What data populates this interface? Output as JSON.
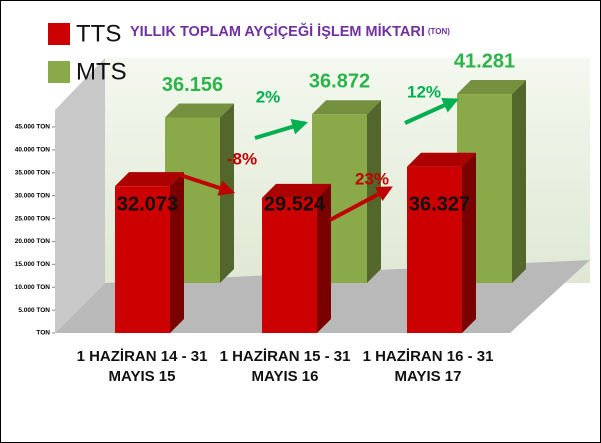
{
  "chart_data": {
    "type": "bar3d",
    "title": "YILLIK TOPLAM AYÇİÇEĞİ İŞLEM MİKTARI",
    "title_unit": "(TON)",
    "categories": [
      "1 HAZİRAN 14 - 31 MAYIS 15",
      "1 HAZİRAN 15 - 31 MAYIS 16",
      "1 HAZİRAN 16 - 31 MAYIS 17"
    ],
    "series": [
      {
        "name": "TTS",
        "color": "#cc0000",
        "values": [
          32073,
          29524,
          36327
        ],
        "value_labels": [
          "32.073",
          "29.524",
          "36.327"
        ]
      },
      {
        "name": "MTS",
        "color": "#8aaa4a",
        "values": [
          36156,
          36872,
          41281
        ],
        "value_labels": [
          "36.156",
          "36.872",
          "41.281"
        ]
      }
    ],
    "ylim": [
      0,
      45000
    ],
    "yticks": [
      {
        "value": 0,
        "label": "TON"
      },
      {
        "value": 5000,
        "label": "5.000 TON"
      },
      {
        "value": 10000,
        "label": "10.000 TON"
      },
      {
        "value": 15000,
        "label": "15.000 TON"
      },
      {
        "value": 20000,
        "label": "20.000 TON"
      },
      {
        "value": 25000,
        "label": "25.000 TON"
      },
      {
        "value": 30000,
        "label": "30.000 TON"
      },
      {
        "value": 35000,
        "label": "35.000 TON"
      },
      {
        "value": 40000,
        "label": "40.000 TON"
      },
      {
        "value": 45000,
        "label": "45.000 TON"
      }
    ],
    "annotations": [
      {
        "text": "-8%",
        "color": "#c00000"
      },
      {
        "text": "2%",
        "color": "#00b050"
      },
      {
        "text": "23%",
        "color": "#c00000"
      },
      {
        "text": "12%",
        "color": "#00b050"
      }
    ]
  }
}
